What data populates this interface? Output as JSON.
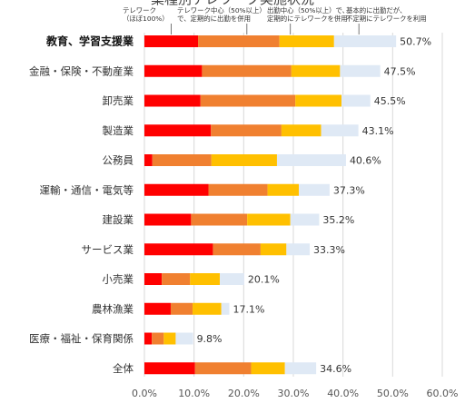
{
  "chart_data": {
    "type": "bar",
    "stacked": true,
    "orientation": "horizontal",
    "title": "業種別テレワーク実施状況",
    "categories": [
      "教育、学習支援業",
      "金融・保険・不動産業",
      "卸売業",
      "製造業",
      "公務員",
      "運輸・通信・電気等",
      "建設業",
      "サービス業",
      "小売業",
      "農林漁業",
      "医療・福祉・保育関係",
      "全体"
    ],
    "highlight_category": "教育、学習支援業",
    "series": [
      {
        "name": "テレワーク（ほぼ100%）",
        "color": "#ff0000",
        "values": [
          10.8,
          11.6,
          11.3,
          13.4,
          1.6,
          12.9,
          9.4,
          13.8,
          3.5,
          5.3,
          1.5,
          10.2
        ]
      },
      {
        "name": "テレワーク中心（50%以上）で、定期的に出勤を併用",
        "color": "#f08030",
        "values": [
          16.4,
          18.0,
          19.1,
          14.2,
          11.9,
          11.9,
          11.3,
          9.6,
          5.7,
          4.4,
          2.4,
          11.3
        ]
      },
      {
        "name": "出勤中心（50%以上）で、定期的にテレワークを併用",
        "color": "#ffc000",
        "values": [
          11.0,
          9.8,
          9.3,
          8.0,
          13.2,
          6.3,
          8.7,
          5.2,
          6.0,
          5.8,
          2.4,
          6.8
        ]
      },
      {
        "name": "基本的に出勤だが、不定期にテレワークを利用",
        "color": "#dfe9f5",
        "values": [
          12.5,
          8.1,
          5.8,
          7.5,
          13.9,
          6.2,
          5.8,
          4.7,
          4.9,
          1.6,
          3.5,
          6.3
        ]
      }
    ],
    "totals": [
      "50.7%",
      "47.5%",
      "45.5%",
      "43.1%",
      "40.6%",
      "37.3%",
      "35.2%",
      "33.3%",
      "20.1%",
      "17.1%",
      "9.8%",
      "34.6%"
    ],
    "xlim": [
      0,
      60
    ],
    "xticks": [
      "0.0%",
      "10.0%",
      "20.0%",
      "30.0%",
      "40.0%",
      "50.0%",
      "60.0%"
    ],
    "grid": true,
    "legend": "annotations-top",
    "annotations": [
      [
        "テレワーク",
        "（ほぼ100%）"
      ],
      [
        "テレワーク中心（50%以上）",
        "で、定期的に出勤を併用"
      ],
      [
        "出勤中心（50%以上）で、",
        "定期的にテレワークを併用"
      ],
      [
        "基本的に出勤だが、",
        "不定期にテレワークを利用"
      ]
    ]
  }
}
